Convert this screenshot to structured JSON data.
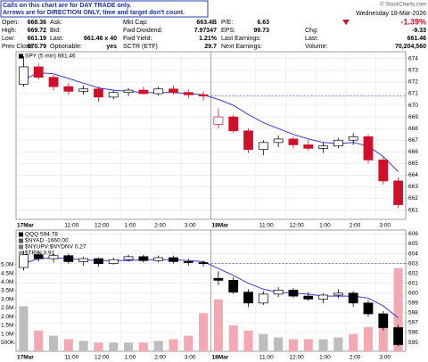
{
  "header": {
    "notice": [
      "Calls on this chart are for DAY TRADE only.",
      "Arrows are for DIRECTION ONLY, time and target don't count."
    ],
    "site": "© StockCharts.com",
    "quote": [
      [
        {
          "label": "Open:",
          "value": "668.36"
        },
        {
          "label": "High:",
          "value": "669.72"
        },
        {
          "label": "Low:",
          "value": "661.19"
        },
        {
          "label": "Prev Close:",
          "value": "670.79"
        }
      ],
      [
        {
          "label": "Ask:"
        },
        {
          "label": "Bid:"
        },
        {
          "label": "Last:",
          "value": "661.46 x 40"
        },
        {
          "label": "Optionable:",
          "value": "yes"
        }
      ],
      [
        {
          "label": "Mkt Cap:",
          "value": "663.4B"
        },
        {
          "label": "Fwd Dividend:",
          "value": "7.97347"
        },
        {
          "label": "Fwd Yield:",
          "value": "1.21%"
        },
        {
          "label": "SCTR (ETF)",
          "value": "29.7"
        }
      ],
      [
        {
          "label": "P/E:",
          "value": "6.63"
        },
        {
          "label": "EPS:",
          "value": "99.73"
        },
        {
          "label": "Last Earnings:"
        },
        {
          "label": "Next Earnings:"
        }
      ]
    ],
    "date": "Wednesday 18-Mar-2026",
    "change_pct": "-1.39%",
    "summary": [
      {
        "label": "Chg:",
        "value": "-9.33"
      },
      {
        "label": "Last:",
        "value": "661.46"
      },
      {
        "label": "Volume:",
        "value": "70,204,560"
      }
    ]
  },
  "chart_data": [
    {
      "type": "candlestick",
      "legend": [
        {
          "name": "SPY (5 min) 661.46",
          "color": "#000000"
        }
      ],
      "categories": [
        "17Mar",
        null,
        null,
        "11:00",
        null,
        "12:00",
        null,
        "1:00",
        null,
        "2:00",
        null,
        "3:00",
        null,
        "18Mar",
        null,
        null,
        "11:00",
        null,
        "12:00",
        null,
        "1:00",
        null,
        "2:00",
        null,
        "3:00",
        null
      ],
      "open": [
        671.8,
        673.3,
        672.4,
        671.6,
        671.2,
        671.4,
        670.7,
        671.1,
        671.3,
        671.0,
        671.4,
        671.1,
        670.9,
        668.36,
        669.0,
        667.8,
        666.2,
        666.8,
        667.1,
        666.6,
        666.3,
        666.5,
        667.0,
        667.3,
        665.3,
        663.5
      ],
      "high": [
        674.2,
        673.6,
        672.6,
        671.9,
        671.7,
        671.6,
        671.3,
        671.5,
        671.6,
        671.6,
        671.7,
        671.4,
        671.2,
        669.72,
        669.2,
        668.0,
        667.0,
        667.4,
        667.3,
        667.0,
        666.8,
        667.2,
        667.6,
        667.5,
        665.6,
        663.8
      ],
      "low": [
        671.6,
        672.2,
        671.3,
        670.9,
        670.9,
        670.3,
        670.5,
        670.8,
        670.9,
        670.8,
        670.9,
        670.6,
        670.4,
        668.0,
        667.6,
        665.9,
        665.7,
        666.4,
        666.3,
        666.1,
        665.9,
        666.3,
        666.6,
        665.0,
        663.2,
        661.19
      ],
      "close": [
        673.3,
        672.4,
        671.6,
        671.2,
        671.4,
        670.7,
        671.1,
        671.3,
        671.0,
        671.4,
        671.1,
        670.9,
        670.79,
        669.0,
        667.8,
        666.2,
        666.8,
        667.1,
        666.6,
        666.3,
        666.5,
        667.0,
        667.3,
        665.3,
        663.5,
        661.46
      ],
      "ma_values": [
        672.2,
        672.8,
        672.7,
        672.3,
        671.9,
        671.5,
        671.3,
        671.2,
        671.1,
        671.1,
        671.1,
        671.0,
        670.9,
        670.5,
        670.0,
        669.2,
        668.5,
        668.0,
        667.5,
        667.1,
        666.8,
        666.7,
        666.8,
        666.5,
        665.6,
        664.3
      ],
      "ma_color": "#3a3acc",
      "reference_line": 670.79,
      "up_color": "#000000",
      "down_color": "#d0102a",
      "ylim": [
        660.2,
        674.6
      ],
      "yticks": [
        661,
        662,
        663,
        664,
        665,
        666,
        667,
        668,
        669,
        670,
        671,
        672,
        673,
        674
      ],
      "grid": true
    },
    {
      "type": "candlestick",
      "legend": [
        {
          "name": "QQQ 594.78",
          "color": "#000000"
        },
        {
          "name": "$NYAD -1660.00",
          "color": "#555555"
        },
        {
          "name": "$NYUPV:$NYDNV 0.27",
          "color": "#777777"
        },
        {
          "name": "$TRIN 0.91",
          "color": "#999999"
        }
      ],
      "categories": [
        "17Mar",
        null,
        null,
        "11:00",
        null,
        "12:00",
        null,
        "1:00",
        null,
        "2:00",
        null,
        "3:00",
        null,
        "18Mar",
        null,
        null,
        "11:00",
        null,
        "12:00",
        null,
        "1:00",
        null,
        "2:00",
        null,
        "3:00",
        null
      ],
      "open": [
        602.6,
        603.9,
        603.5,
        603.8,
        603.2,
        603.5,
        603.0,
        603.4,
        603.7,
        603.3,
        603.6,
        603.2,
        603.1,
        601.5,
        601.3,
        600.1,
        599.0,
        599.9,
        600.3,
        599.7,
        599.4,
        599.8,
        600.0,
        599.0,
        597.9,
        596.5
      ],
      "high": [
        604.3,
        604.2,
        604.0,
        604.0,
        603.7,
        603.6,
        603.6,
        603.9,
        603.9,
        603.8,
        603.8,
        603.5,
        603.3,
        602.2,
        601.6,
        600.4,
        600.2,
        600.6,
        600.5,
        600.1,
        600.0,
        600.4,
        600.2,
        599.3,
        598.2,
        596.8
      ],
      "low": [
        602.3,
        603.2,
        603.1,
        603.0,
        602.8,
        602.7,
        602.9,
        603.2,
        603.1,
        603.1,
        603.0,
        602.8,
        602.7,
        600.8,
        599.9,
        598.6,
        598.8,
        599.6,
        599.5,
        599.2,
        599.0,
        599.5,
        598.6,
        597.6,
        596.2,
        594.6
      ],
      "close": [
        603.9,
        603.5,
        603.8,
        603.2,
        603.5,
        603.0,
        603.4,
        603.7,
        603.3,
        603.6,
        603.2,
        603.1,
        603.0,
        601.3,
        600.1,
        599.0,
        599.9,
        600.3,
        599.7,
        599.4,
        599.8,
        600.0,
        599.0,
        597.9,
        596.5,
        594.78
      ],
      "ma_values": [
        603.0,
        603.5,
        603.6,
        603.5,
        603.4,
        603.3,
        603.3,
        603.3,
        603.4,
        603.4,
        603.4,
        603.3,
        603.2,
        602.5,
        601.8,
        601.0,
        600.4,
        600.1,
        600.0,
        599.9,
        599.7,
        599.7,
        599.7,
        599.5,
        598.7,
        597.5
      ],
      "ma_color": "#3a3acc",
      "reference_line": 603.0,
      "up_color": "#000000",
      "down_color": "#000000",
      "volume": [
        2600000,
        1200000,
        900000,
        700000,
        600000,
        500000,
        500000,
        500000,
        500000,
        600000,
        700000,
        900000,
        2200000,
        3000000,
        1500000,
        1200000,
        1000000,
        800000,
        700000,
        700000,
        700000,
        800000,
        1000000,
        1400000,
        2000000,
        4800000
      ],
      "volume_up_color": "#bdbdbd",
      "volume_down_color": "#f2a9b3",
      "vlim": [
        0,
        7000000
      ],
      "vticks": [
        {
          "value": 500000,
          "label": "500K"
        },
        {
          "value": 1000000,
          "label": "1.0M"
        },
        {
          "value": 1500000,
          "label": "1.5M"
        },
        {
          "value": 2000000,
          "label": "2.0M"
        },
        {
          "value": 2500000,
          "label": "2.5M"
        },
        {
          "value": 3000000,
          "label": "3.0M"
        },
        {
          "value": 3500000,
          "label": "3.5M"
        },
        {
          "value": 4000000,
          "label": "4.0M"
        },
        {
          "value": 4500000,
          "label": "4.5M"
        },
        {
          "value": 5000000,
          "label": "5.0M"
        }
      ],
      "ylim": [
        594.1,
        606.4
      ],
      "yticks": [
        595,
        596,
        597,
        598,
        599,
        600,
        601,
        602,
        603,
        604,
        605,
        606
      ],
      "grid": true
    }
  ]
}
